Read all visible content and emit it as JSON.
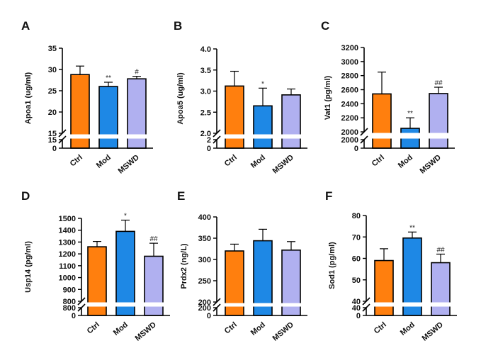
{
  "chart_data": [
    {
      "id": "A",
      "type": "bar",
      "panel_label": "A",
      "ylabel": "Apoa1 (ug/ml)",
      "categories": [
        "Ctrl",
        "Mod",
        "MSWD"
      ],
      "values": [
        28.8,
        26.0,
        27.8
      ],
      "errors": [
        2.0,
        1.0,
        0.6
      ],
      "significance": [
        "",
        "**",
        "#"
      ],
      "ylim_upper": [
        15,
        35
      ],
      "ylim_lower": [
        0,
        15
      ],
      "ticks_upper": [
        "15",
        "20",
        "25",
        "30",
        "35"
      ],
      "ticks_lower": [
        "0",
        "15"
      ],
      "colors": [
        "#FF7F0E",
        "#1E88E5",
        "#B0B0F0"
      ]
    },
    {
      "id": "B",
      "type": "bar",
      "panel_label": "B",
      "ylabel": "Apoa5 (ug/ml)",
      "categories": [
        "Ctrl",
        "Mod",
        "MSWD"
      ],
      "values": [
        3.12,
        2.65,
        2.91
      ],
      "errors": [
        0.35,
        0.42,
        0.14
      ],
      "significance": [
        "",
        "*",
        ""
      ],
      "ylim_upper": [
        2.0,
        4.0
      ],
      "ylim_lower": [
        0,
        2
      ],
      "ticks_upper": [
        "2.0",
        "2.5",
        "3.0",
        "3.5",
        "4.0"
      ],
      "ticks_lower": [
        "0",
        "2"
      ],
      "colors": [
        "#FF7F0E",
        "#1E88E5",
        "#B0B0F0"
      ]
    },
    {
      "id": "C",
      "type": "bar",
      "panel_label": "C",
      "ylabel": "Vat1 (pg/ml)",
      "categories": [
        "Ctrl",
        "Mod",
        "MSWD"
      ],
      "values": [
        2540,
        2050,
        2545
      ],
      "errors": [
        310,
        150,
        90
      ],
      "significance": [
        "",
        "**",
        "##"
      ],
      "ylim_upper": [
        2000,
        3200
      ],
      "ylim_lower": [
        0,
        2000
      ],
      "ticks_upper": [
        "2000",
        "2200",
        "2400",
        "2600",
        "2800",
        "3000",
        "3200"
      ],
      "ticks_lower": [
        "0",
        "2000"
      ],
      "colors": [
        "#FF7F0E",
        "#1E88E5",
        "#B0B0F0"
      ]
    },
    {
      "id": "D",
      "type": "bar",
      "panel_label": "D",
      "ylabel": "Usp14 (pg/ml)",
      "categories": [
        "Ctrl",
        "Mod",
        "MSWD"
      ],
      "values": [
        1260,
        1390,
        1180
      ],
      "errors": [
        45,
        95,
        110
      ],
      "significance": [
        "",
        "*",
        "##"
      ],
      "ylim_upper": [
        800,
        1500
      ],
      "ylim_lower": [
        0,
        800
      ],
      "ticks_upper": [
        "800",
        "900",
        "1000",
        "1100",
        "1200",
        "1300",
        "1400",
        "1500"
      ],
      "ticks_lower": [
        "0",
        "800"
      ],
      "colors": [
        "#FF7F0E",
        "#1E88E5",
        "#B0B0F0"
      ]
    },
    {
      "id": "E",
      "type": "bar",
      "panel_label": "E",
      "ylabel": "Prdx2 (ng/L)",
      "categories": [
        "Ctrl",
        "Mod",
        "MSWD"
      ],
      "values": [
        320,
        344,
        322
      ],
      "errors": [
        16,
        27,
        20
      ],
      "significance": [
        "",
        "",
        ""
      ],
      "ylim_upper": [
        200,
        400
      ],
      "ylim_lower": [
        0,
        200
      ],
      "ticks_upper": [
        "200",
        "250",
        "300",
        "350",
        "400"
      ],
      "ticks_lower": [
        "0",
        "200"
      ],
      "colors": [
        "#FF7F0E",
        "#1E88E5",
        "#B0B0F0"
      ]
    },
    {
      "id": "F",
      "type": "bar",
      "panel_label": "F",
      "ylabel": "Sod1 (pg/ml)",
      "categories": [
        "Ctrl",
        "Mod",
        "MSWD"
      ],
      "values": [
        59,
        69.5,
        58
      ],
      "errors": [
        5.5,
        2.8,
        4.0
      ],
      "significance": [
        "",
        "**",
        "##"
      ],
      "ylim_upper": [
        40,
        80
      ],
      "ylim_lower": [
        0,
        40
      ],
      "ticks_upper": [
        "40",
        "50",
        "60",
        "70",
        "80"
      ],
      "ticks_lower": [
        "0",
        "40"
      ],
      "colors": [
        "#FF7F0E",
        "#1E88E5",
        "#B0B0F0"
      ]
    }
  ]
}
